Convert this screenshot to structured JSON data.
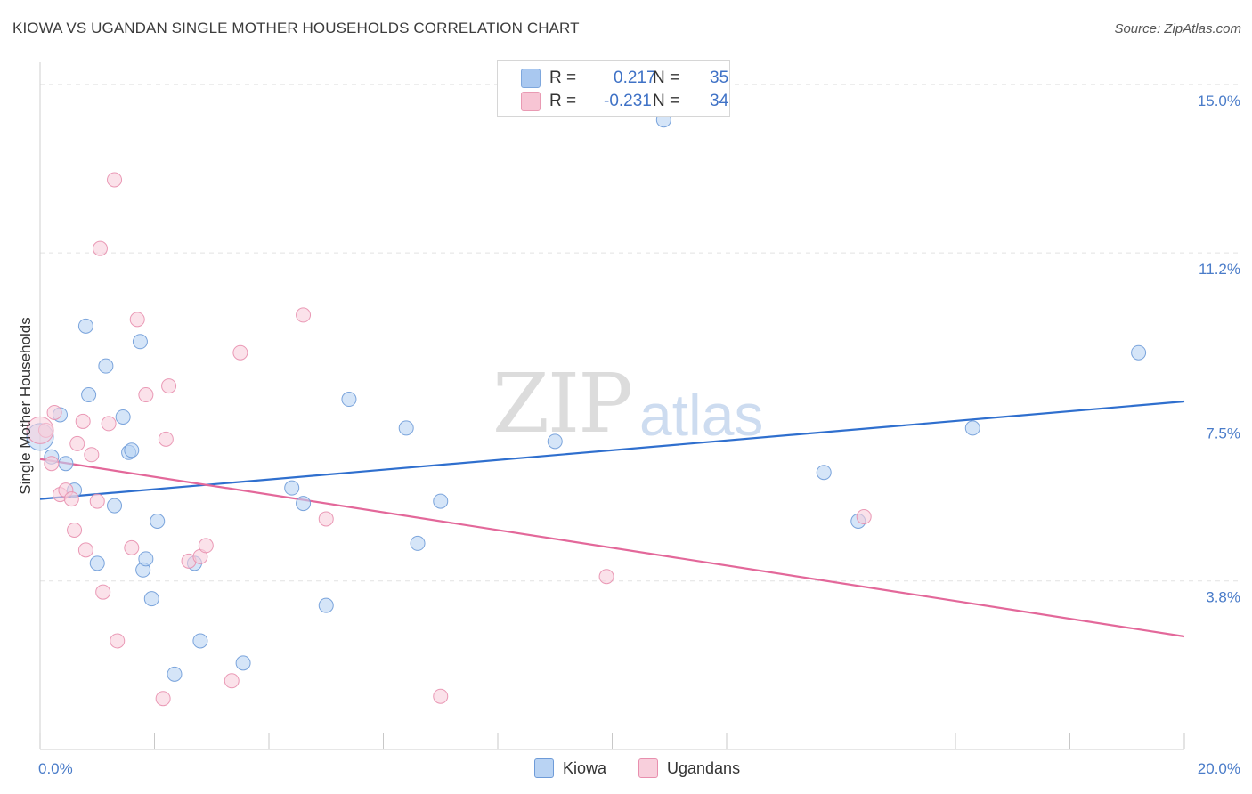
{
  "title": "KIOWA VS UGANDAN SINGLE MOTHER HOUSEHOLDS CORRELATION CHART",
  "source": "Source: ZipAtlas.com",
  "watermark": {
    "zip": "ZIP",
    "atlas": "atlas"
  },
  "legend": {
    "rows": [
      {
        "r_label": "R =",
        "r_value": "0.217",
        "n_label": "N =",
        "n_value": "35",
        "color": "#a9c8f0",
        "border": "#7ea7dd"
      },
      {
        "r_label": "R =",
        "r_value": "-0.231",
        "n_label": "N =",
        "n_value": "34",
        "color": "#f7c5d4",
        "border": "#e99ab3"
      }
    ]
  },
  "bottom_legend": [
    {
      "label": "Kiowa",
      "color": "#b9d3f3",
      "border": "#6e9bd8"
    },
    {
      "label": "Ugandans",
      "color": "#f8cfdc",
      "border": "#e88fae"
    }
  ],
  "chart_data": {
    "type": "scatter",
    "title": "KIOWA VS UGANDAN SINGLE MOTHER HOUSEHOLDS CORRELATION CHART",
    "ylabel": "Single Mother Households",
    "xlabel": "",
    "xlim": [
      0,
      20
    ],
    "ylim": [
      0,
      15.5
    ],
    "x_tick_labels": {
      "left": "0.0%",
      "right": "20.0%"
    },
    "y_ticks": [
      {
        "value": 3.8,
        "label": "3.8%"
      },
      {
        "value": 7.5,
        "label": "7.5%"
      },
      {
        "value": 11.2,
        "label": "11.2%"
      },
      {
        "value": 15.0,
        "label": "15.0%"
      }
    ],
    "grid": "horizontal dashed",
    "series": [
      {
        "name": "Kiowa",
        "color": "#6e9bd8",
        "fill": "#b9d3f3",
        "line_color": "#2f6fce",
        "trend": {
          "x0": 0,
          "y0": 5.65,
          "x1": 20,
          "y1": 7.85
        },
        "points": [
          [
            0.0,
            7.05
          ],
          [
            0.2,
            6.6
          ],
          [
            0.35,
            7.55
          ],
          [
            0.45,
            6.45
          ],
          [
            0.6,
            5.85
          ],
          [
            0.8,
            9.55
          ],
          [
            0.85,
            8.0
          ],
          [
            1.0,
            4.2
          ],
          [
            1.15,
            8.65
          ],
          [
            1.3,
            5.5
          ],
          [
            1.45,
            7.5
          ],
          [
            1.55,
            6.7
          ],
          [
            1.6,
            6.75
          ],
          [
            1.75,
            9.2
          ],
          [
            1.8,
            4.05
          ],
          [
            1.85,
            4.3
          ],
          [
            1.95,
            3.4
          ],
          [
            2.05,
            5.15
          ],
          [
            2.35,
            1.7
          ],
          [
            2.7,
            4.2
          ],
          [
            2.8,
            2.45
          ],
          [
            3.55,
            1.95
          ],
          [
            4.4,
            5.9
          ],
          [
            4.6,
            5.55
          ],
          [
            5.0,
            3.25
          ],
          [
            5.4,
            7.9
          ],
          [
            6.4,
            7.25
          ],
          [
            6.6,
            4.65
          ],
          [
            7.0,
            5.6
          ],
          [
            9.0,
            6.95
          ],
          [
            10.9,
            14.2
          ],
          [
            13.7,
            6.25
          ],
          [
            14.3,
            5.15
          ],
          [
            16.3,
            7.25
          ],
          [
            19.2,
            8.95
          ]
        ]
      },
      {
        "name": "Ugandans",
        "color": "#e88fae",
        "fill": "#f8cfdc",
        "line_color": "#e3689a",
        "trend": {
          "x0": 0,
          "y0": 6.55,
          "x1": 20,
          "y1": 2.55
        },
        "points": [
          [
            0.1,
            7.2
          ],
          [
            0.2,
            6.45
          ],
          [
            0.25,
            7.6
          ],
          [
            0.35,
            5.75
          ],
          [
            0.45,
            5.85
          ],
          [
            0.55,
            5.65
          ],
          [
            0.6,
            4.95
          ],
          [
            0.65,
            6.9
          ],
          [
            0.75,
            7.4
          ],
          [
            0.8,
            4.5
          ],
          [
            0.9,
            6.65
          ],
          [
            1.05,
            11.3
          ],
          [
            1.1,
            3.55
          ],
          [
            1.2,
            7.35
          ],
          [
            1.3,
            12.85
          ],
          [
            1.35,
            2.45
          ],
          [
            1.0,
            5.6
          ],
          [
            1.6,
            4.55
          ],
          [
            1.7,
            9.7
          ],
          [
            1.85,
            8.0
          ],
          [
            2.15,
            1.15
          ],
          [
            2.2,
            7.0
          ],
          [
            2.25,
            8.2
          ],
          [
            2.6,
            4.25
          ],
          [
            2.8,
            4.35
          ],
          [
            2.9,
            4.6
          ],
          [
            3.35,
            1.55
          ],
          [
            3.5,
            8.95
          ],
          [
            4.6,
            9.8
          ],
          [
            5.0,
            5.2
          ],
          [
            7.0,
            1.2
          ],
          [
            9.9,
            3.9
          ],
          [
            14.4,
            5.25
          ],
          [
            0.0,
            7.2
          ]
        ]
      }
    ]
  }
}
